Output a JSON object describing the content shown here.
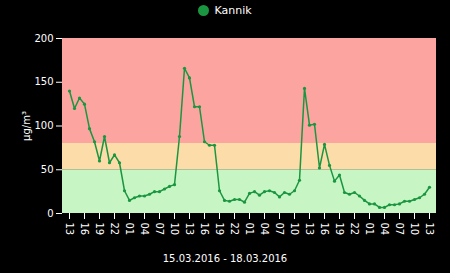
{
  "chart_data": {
    "type": "line",
    "x_label": "15.03.2016 - 18.03.2016",
    "y_label": "µg/m³",
    "categories": [
      "13",
      null,
      null,
      "16",
      null,
      null,
      "19",
      null,
      null,
      "22",
      null,
      null,
      "01",
      null,
      null,
      "04",
      null,
      null,
      "07",
      null,
      null,
      "10",
      null,
      null,
      "13",
      null,
      null,
      "16",
      null,
      null,
      "19",
      null,
      null,
      "22",
      null,
      null,
      "01",
      null,
      null,
      "04",
      null,
      null,
      "07",
      null,
      null,
      "10",
      null,
      null,
      "13",
      null,
      null,
      "16",
      null,
      null,
      "19",
      null,
      null,
      "22",
      null,
      null,
      "01",
      null,
      null,
      "04",
      null,
      null,
      "07",
      null,
      null,
      "10",
      null,
      null,
      "13"
    ],
    "series": [
      {
        "name": "Kannik",
        "color": "#1a9641",
        "marker": "circle",
        "values": [
          140,
          120,
          132,
          125,
          97,
          82,
          60,
          88,
          58,
          67,
          58,
          26,
          15,
          18,
          20,
          20,
          22,
          25,
          25,
          28,
          31,
          33,
          88,
          166,
          155,
          122,
          122,
          82,
          78,
          78,
          26,
          15,
          14,
          16,
          16,
          13,
          23,
          25,
          21,
          25,
          26,
          24,
          19,
          24,
          22,
          26,
          38,
          143,
          101,
          102,
          52,
          79,
          55,
          37,
          44,
          24,
          22,
          24,
          20,
          15,
          11,
          11,
          7,
          7,
          10,
          10,
          11,
          14,
          14,
          16,
          18,
          22,
          30
        ]
      }
    ],
    "bands": [
      {
        "from": 0,
        "to": 50,
        "color": "#c8f5c4"
      },
      {
        "from": 50,
        "to": 80,
        "color": "#fcdca8"
      },
      {
        "from": 80,
        "to": 200,
        "color": "#fca5a0"
      }
    ],
    "ylim": [
      0,
      200
    ],
    "yticks": [
      0,
      50,
      100,
      150,
      200
    ],
    "legend": "top",
    "grid": false
  }
}
